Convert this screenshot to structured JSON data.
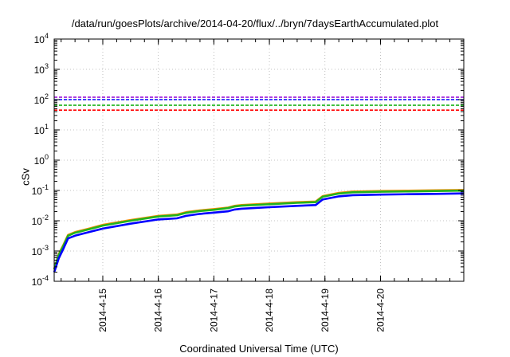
{
  "chart_data": {
    "type": "line",
    "title": "/data/run/goesPlots/archive/2014-04-20/flux/../bryn/7daysEarthAccumulated.plot",
    "xlabel": "Coordinated Universal Time (UTC)",
    "ylabel": "cSv",
    "y_scale": "log",
    "ylim": [
      0.0001,
      10000
    ],
    "y_ticks": [
      {
        "value": 0.0001,
        "mantissa": "10",
        "exp": "-4"
      },
      {
        "value": 0.001,
        "mantissa": "10",
        "exp": "-3"
      },
      {
        "value": 0.01,
        "mantissa": "10",
        "exp": "-2"
      },
      {
        "value": 0.1,
        "mantissa": "10",
        "exp": "-1"
      },
      {
        "value": 1,
        "mantissa": "10",
        "exp": "0"
      },
      {
        "value": 10,
        "mantissa": "10",
        "exp": "1"
      },
      {
        "value": 100,
        "mantissa": "10",
        "exp": "2"
      },
      {
        "value": 1000,
        "mantissa": "10",
        "exp": "3"
      },
      {
        "value": 10000,
        "mantissa": "10",
        "exp": "4"
      }
    ],
    "xlim": [
      "2014-04-14T03:00",
      "2014-04-21T12:00"
    ],
    "x_ticks": [
      "2014-4-15",
      "2014-4-16",
      "2014-4-17",
      "2014-4-18",
      "2014-4-19",
      "2014-4-20"
    ],
    "x_tick_dates": [
      "2014-04-15T00:00",
      "2014-04-16T00:00",
      "2014-04-17T00:00",
      "2014-04-18T00:00",
      "2014-04-19T00:00",
      "2014-04-20T00:00"
    ],
    "grid": true,
    "x": [
      "2014-04-14T03:00",
      "2014-04-14T05:00",
      "2014-04-14T07:00",
      "2014-04-14T09:00",
      "2014-04-14T12:00",
      "2014-04-14T18:00",
      "2014-04-15T00:00",
      "2014-04-15T12:00",
      "2014-04-16T00:00",
      "2014-04-16T08:00",
      "2014-04-16T12:00",
      "2014-04-16T18:00",
      "2014-04-17T00:00",
      "2014-04-17T06:00",
      "2014-04-17T09:00",
      "2014-04-17T12:00",
      "2014-04-18T00:00",
      "2014-04-18T12:00",
      "2014-04-18T20:00",
      "2014-04-18T23:00",
      "2014-04-19T06:00",
      "2014-04-19T12:00",
      "2014-04-20T00:00",
      "2014-04-20T12:00",
      "2014-04-21T00:00",
      "2014-04-21T12:00"
    ],
    "series": [
      {
        "color": "#ff8c00",
        "style": "solid",
        "values": [
          0.00025,
          0.0008,
          0.0016,
          0.0034,
          0.0042,
          0.0055,
          0.0073,
          0.0105,
          0.0145,
          0.016,
          0.0192,
          0.022,
          0.0242,
          0.027,
          0.031,
          0.033,
          0.037,
          0.041,
          0.043,
          0.0652,
          0.0832,
          0.092,
          0.096,
          0.098,
          0.101,
          0.104
        ]
      },
      {
        "color": "#1fb31f",
        "style": "solid",
        "values": [
          0.00025,
          0.00075,
          0.0015,
          0.0032,
          0.004,
          0.0052,
          0.0069,
          0.01,
          0.0138,
          0.0152,
          0.0182,
          0.021,
          0.023,
          0.026,
          0.0295,
          0.0315,
          0.035,
          0.039,
          0.041,
          0.062,
          0.079,
          0.087,
          0.091,
          0.093,
          0.096,
          0.099
        ]
      },
      {
        "color": "#0000ff",
        "style": "solid",
        "values": [
          0.0002,
          0.00058,
          0.0012,
          0.0026,
          0.0032,
          0.0042,
          0.0055,
          0.008,
          0.011,
          0.012,
          0.0145,
          0.0168,
          0.0185,
          0.0205,
          0.0235,
          0.025,
          0.028,
          0.031,
          0.033,
          0.05,
          0.064,
          0.07,
          0.073,
          0.075,
          0.077,
          0.08
        ]
      },
      {
        "color": "#9400d3",
        "style": "dashed",
        "constant": 120
      },
      {
        "color": "#0000ff",
        "style": "dashed",
        "constant": 100
      },
      {
        "color": "#1fb31f",
        "style": "dashed",
        "constant": 65
      },
      {
        "color": "#ff0000",
        "style": "dashed",
        "constant": 45
      }
    ]
  }
}
